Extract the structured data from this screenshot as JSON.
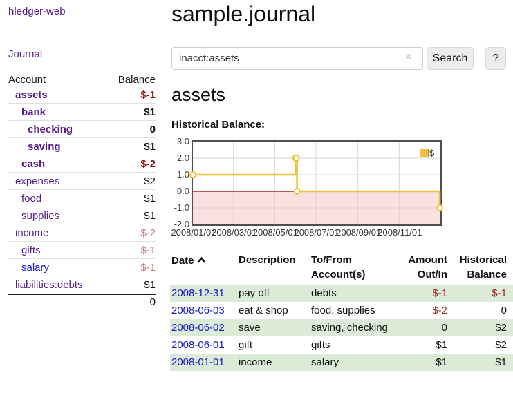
{
  "colors": {
    "link_purple": "#551a8b",
    "link_blue": "#1a1acd",
    "negative_strong": "#8c1414",
    "negative_soft": "#c17d7d",
    "negative_table": "#a12a2a",
    "row_green": "#dcead8",
    "series_gold": "#edc240"
  },
  "sidebar": {
    "brand": "hledger-web",
    "nav_journal": "Journal",
    "accounts": {
      "header_account": "Account",
      "header_balance": "Balance",
      "rows": [
        {
          "name": "assets",
          "balance": "$-1"
        },
        {
          "name": "bank",
          "balance": "$1"
        },
        {
          "name": "checking",
          "balance": "0"
        },
        {
          "name": "saving",
          "balance": "$1"
        },
        {
          "name": "cash",
          "balance": "$-2"
        },
        {
          "name": "expenses",
          "balance": "$2"
        },
        {
          "name": "food",
          "balance": "$1"
        },
        {
          "name": "supplies",
          "balance": "$1"
        },
        {
          "name": "income",
          "balance": "$-2"
        },
        {
          "name": "gifts",
          "balance": "$-1"
        },
        {
          "name": "salary",
          "balance": "$-1"
        },
        {
          "name": "liabilities:debts",
          "balance": "$1"
        }
      ],
      "total": "0"
    }
  },
  "main": {
    "title": "sample.journal",
    "search": {
      "value": "inacct:assets",
      "clear_icon": "×",
      "search_button": "Search",
      "help_button": "?"
    },
    "account_heading": "assets",
    "section_label": "Historical Balance:"
  },
  "chart_data": {
    "type": "line",
    "step": true,
    "title": "Historical Balance",
    "legend_entries": [
      "$"
    ],
    "legend_position": "top-right",
    "grid": true,
    "ylim": [
      -2,
      3
    ],
    "yticks": [
      "3.0",
      "2.0",
      "1.0",
      "0.0",
      "-1.0",
      "-2.0"
    ],
    "xticks": [
      "2008/01/01",
      "2008/03/01",
      "2008/05/01",
      "2008/07/01",
      "2008/09/01",
      "2008/11/01"
    ],
    "x_range": [
      "2008-01-01",
      "2008-12-31"
    ],
    "negative_region_color": "#f6c6c6",
    "zero_line_color": "#990000",
    "series": [
      {
        "name": "$",
        "color": "#edc240",
        "points": [
          [
            "2008-01-01",
            1
          ],
          [
            "2008-06-01",
            2
          ],
          [
            "2008-06-02",
            2
          ],
          [
            "2008-06-03",
            0
          ],
          [
            "2008-12-31",
            -1
          ]
        ]
      }
    ]
  },
  "register": {
    "headers": {
      "date": "Date",
      "description": "Description",
      "tofrom": "To/From Account(s)",
      "amount": "Amount Out/In",
      "balance": "Historical Balance"
    },
    "rows": [
      {
        "date": "2008-12-31",
        "description": "pay off",
        "accounts": "debts",
        "amount": "$-1",
        "balance": "$-1"
      },
      {
        "date": "2008-06-03",
        "description": "eat & shop",
        "accounts": "food, supplies",
        "amount": "$-2",
        "balance": "0"
      },
      {
        "date": "2008-06-02",
        "description": "save",
        "accounts": "saving, checking",
        "amount": "0",
        "balance": "$2"
      },
      {
        "date": "2008-06-01",
        "description": "gift",
        "accounts": "gifts",
        "amount": "$1",
        "balance": "$2"
      },
      {
        "date": "2008-01-01",
        "description": "income",
        "accounts": "salary",
        "amount": "$1",
        "balance": "$1"
      }
    ]
  }
}
